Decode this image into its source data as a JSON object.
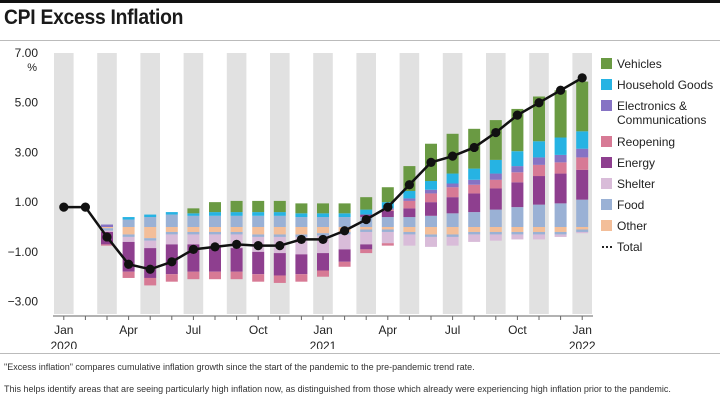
{
  "title": "CPI Excess Inflation",
  "notes": [
    "\"Excess inflation\" compares cumulative inflation growth since the start of the pandemic to the pre-pandemic trend rate.",
    "This helps identify areas that are seeing particularly high inflation now, as distinguished from those which already were experiencing high inflation prior to the pandemic."
  ],
  "colors": {
    "Vehicles": "#6a9a43",
    "Household Goods": "#26b3e3",
    "Electronics & Communications": "#8673c4",
    "Reopening": "#d77a95",
    "Energy": "#8e3f8f",
    "Shelter": "#d9bcd9",
    "Food": "#9ab1d5",
    "Other": "#f3be99",
    "Total": "#111111",
    "shade": "#e1e1e1"
  },
  "legend": [
    {
      "key": "Vehicles",
      "label": "Vehicles"
    },
    {
      "key": "Household Goods",
      "label": "Household Goods"
    },
    {
      "key": "Electronics & Communications",
      "label": "Electronics &\nCommunications"
    },
    {
      "key": "Reopening",
      "label": "Reopening"
    },
    {
      "key": "Energy",
      "label": "Energy"
    },
    {
      "key": "Shelter",
      "label": "Shelter"
    },
    {
      "key": "Food",
      "label": "Food"
    },
    {
      "key": "Other",
      "label": "Other"
    },
    {
      "key": "Total",
      "label": "Total",
      "dotted": true
    }
  ],
  "chart_data": {
    "type": "bar",
    "stacked": true,
    "title": "CPI Excess Inflation",
    "ylabel": "%",
    "ylim": [
      -3.5,
      7.0
    ],
    "yticks": [
      7.0,
      5.0,
      3.0,
      1.0,
      -1.0,
      -3.0
    ],
    "ytick_labels": [
      "7.00",
      "5.00",
      "3.00",
      "1.00",
      "−1.00",
      "−3.00"
    ],
    "x_tick_labels": [
      {
        "month": 0,
        "lines": [
          "Jan",
          "2020"
        ]
      },
      {
        "month": 3,
        "lines": [
          "Apr"
        ]
      },
      {
        "month": 6,
        "lines": [
          "Jul"
        ]
      },
      {
        "month": 9,
        "lines": [
          "Oct"
        ]
      },
      {
        "month": 12,
        "lines": [
          "Jan",
          "2021"
        ]
      },
      {
        "month": 15,
        "lines": [
          "Apr"
        ]
      },
      {
        "month": 18,
        "lines": [
          "Jul"
        ]
      },
      {
        "month": 21,
        "lines": [
          "Oct"
        ]
      },
      {
        "month": 24,
        "lines": [
          "Jan",
          "2022"
        ]
      }
    ],
    "months": [
      "Jan 2020",
      "Feb 2020",
      "Mar 2020",
      "Apr 2020",
      "May 2020",
      "Jun 2020",
      "Jul 2020",
      "Aug 2020",
      "Sep 2020",
      "Oct 2020",
      "Nov 2020",
      "Dec 2020",
      "Jan 2021",
      "Feb 2021",
      "Mar 2021",
      "Apr 2021",
      "May 2021",
      "Jun 2021",
      "Jul 2021",
      "Aug 2021",
      "Sep 2021",
      "Oct 2021",
      "Nov 2021",
      "Dec 2021",
      "Jan 2022"
    ],
    "series": [
      {
        "name": "Food",
        "values": [
          0.0,
          0.0,
          0.0,
          0.3,
          0.4,
          0.5,
          0.45,
          0.45,
          0.45,
          0.45,
          0.45,
          0.4,
          0.4,
          0.4,
          0.4,
          0.4,
          0.4,
          0.45,
          0.55,
          0.6,
          0.7,
          0.8,
          0.9,
          0.95,
          1.1
        ]
      },
      {
        "name": "Shelter",
        "values": [
          0.0,
          0.0,
          0.0,
          0.0,
          0.0,
          0.0,
          0.0,
          0.0,
          0.0,
          0.0,
          0.0,
          0.0,
          0.0,
          0.0,
          0.0,
          0.0,
          0.0,
          0.0,
          0.0,
          0.0,
          0.0,
          0.0,
          0.0,
          0.0,
          0.0
        ]
      },
      {
        "name": "Energy",
        "values": [
          0.0,
          0.0,
          0.0,
          0.0,
          0.0,
          0.0,
          0.0,
          0.0,
          0.0,
          0.0,
          0.0,
          0.0,
          0.0,
          0.0,
          0.1,
          0.25,
          0.35,
          0.55,
          0.65,
          0.75,
          0.85,
          1.0,
          1.15,
          1.2,
          1.2
        ]
      },
      {
        "name": "Reopening",
        "values": [
          0.0,
          0.0,
          0.0,
          0.0,
          0.0,
          0.0,
          0.0,
          0.0,
          0.0,
          0.0,
          0.0,
          0.0,
          0.0,
          0.0,
          0.0,
          0.05,
          0.3,
          0.35,
          0.4,
          0.35,
          0.35,
          0.4,
          0.45,
          0.45,
          0.5
        ]
      },
      {
        "name": "Electronics & Communications",
        "values": [
          0.0,
          0.0,
          0.1,
          0.0,
          0.0,
          0.0,
          0.0,
          0.0,
          0.0,
          0.0,
          0.0,
          0.0,
          0.0,
          0.0,
          0.0,
          0.05,
          0.1,
          0.15,
          0.15,
          0.2,
          0.25,
          0.25,
          0.3,
          0.3,
          0.35
        ]
      },
      {
        "name": "Household Goods",
        "values": [
          0.0,
          0.0,
          0.0,
          0.1,
          0.1,
          0.1,
          0.1,
          0.15,
          0.15,
          0.15,
          0.15,
          0.15,
          0.15,
          0.15,
          0.2,
          0.25,
          0.3,
          0.35,
          0.4,
          0.45,
          0.55,
          0.6,
          0.65,
          0.7,
          0.7
        ]
      },
      {
        "name": "Vehicles",
        "values": [
          0.0,
          0.0,
          0.0,
          0.0,
          0.0,
          0.0,
          0.2,
          0.4,
          0.45,
          0.45,
          0.45,
          0.4,
          0.4,
          0.4,
          0.5,
          0.6,
          1.0,
          1.5,
          1.6,
          1.6,
          1.6,
          1.7,
          1.8,
          1.9,
          2.0
        ]
      },
      {
        "name": "Other",
        "values": [
          0.0,
          0.0,
          -0.05,
          -0.3,
          -0.45,
          -0.2,
          -0.2,
          -0.2,
          -0.2,
          -0.3,
          -0.3,
          -0.3,
          -0.25,
          -0.2,
          -0.1,
          -0.1,
          -0.2,
          -0.3,
          -0.3,
          -0.2,
          -0.2,
          -0.2,
          -0.2,
          -0.2,
          -0.1
        ]
      },
      {
        "name": "Food ",
        "values": [
          0.0,
          0.0,
          -0.1,
          -0.1,
          -0.1,
          -0.1,
          -0.1,
          -0.1,
          -0.1,
          -0.1,
          -0.1,
          -0.1,
          -0.1,
          -0.1,
          -0.1,
          -0.1,
          -0.1,
          -0.1,
          -0.1,
          -0.1,
          -0.1,
          -0.1,
          -0.1,
          -0.1,
          -0.1
        ]
      },
      {
        "name": "Shelter ",
        "values": [
          0.0,
          0.0,
          -0.05,
          -0.2,
          -0.3,
          -0.4,
          -0.4,
          -0.5,
          -0.55,
          -0.6,
          -0.65,
          -0.7,
          -0.7,
          -0.6,
          -0.5,
          -0.45,
          -0.45,
          -0.4,
          -0.35,
          -0.3,
          -0.25,
          -0.2,
          -0.2,
          -0.1,
          -0.05
        ]
      },
      {
        "name": "Energy ",
        "values": [
          0.0,
          0.0,
          -0.5,
          -1.2,
          -1.2,
          -1.2,
          -1.1,
          -1.0,
          -0.95,
          -0.9,
          -0.9,
          -0.8,
          -0.7,
          -0.5,
          -0.2,
          0.0,
          0.0,
          0.0,
          0.0,
          0.0,
          0.0,
          0.0,
          0.0,
          0.0,
          0.0
        ]
      },
      {
        "name": "Reopening ",
        "values": [
          0.0,
          0.0,
          -0.05,
          -0.25,
          -0.3,
          -0.3,
          -0.3,
          -0.3,
          -0.3,
          -0.3,
          -0.3,
          -0.3,
          -0.25,
          -0.2,
          -0.15,
          -0.1,
          0.0,
          0.0,
          0.0,
          0.0,
          0.0,
          0.0,
          0.0,
          0.0,
          0.0
        ]
      }
    ],
    "total": [
      0.8,
      0.8,
      -0.4,
      -1.5,
      -1.7,
      -1.4,
      -0.9,
      -0.8,
      -0.7,
      -0.75,
      -0.75,
      -0.5,
      -0.5,
      -0.15,
      0.3,
      0.8,
      1.7,
      2.6,
      2.85,
      3.2,
      3.8,
      4.5,
      5.0,
      5.5,
      6.0
    ]
  }
}
